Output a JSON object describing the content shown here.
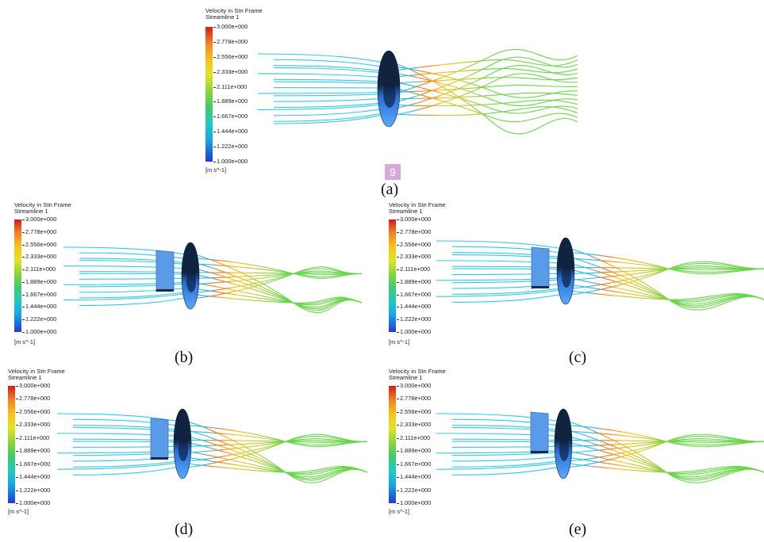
{
  "legend": {
    "title": "Velocity in Stn Frame",
    "subtitle": "Streamline 1",
    "ticks": [
      "3.000e+000",
      "2.778e+000",
      "2.556e+000",
      "2.333e+000",
      "2.111e+000",
      "1.889e+000",
      "1.667e+000",
      "1.444e+000",
      "1.222e+000",
      "1.000e+000"
    ],
    "units": "[m s^-1]"
  },
  "captions": {
    "a": "(a)",
    "b": "(b)",
    "c": "(c)",
    "d": "(d)",
    "e": "(e)"
  },
  "badge": "9",
  "colors": {
    "upstream": "#33c8e6",
    "slow": "#29b8e8",
    "mid": "#6ad44a",
    "fast": "#f2c21a",
    "peak": "#f07a1a",
    "rotor": "#2a6fd6",
    "rotor_dark": "#10243f",
    "duct": "#5a9be8"
  }
}
